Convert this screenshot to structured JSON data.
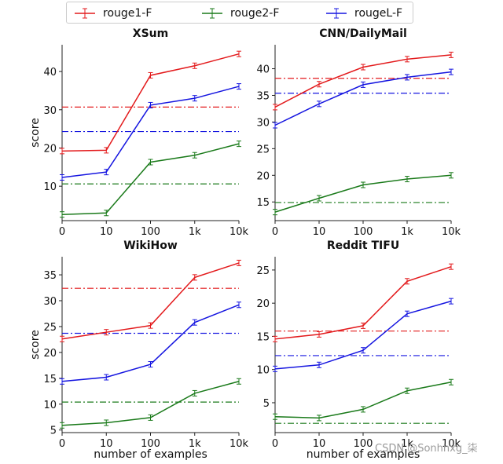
{
  "legend": {
    "items": [
      {
        "label": "rouge1-F",
        "color": "#e31a1c"
      },
      {
        "label": "rouge2-F",
        "color": "#1a7a1a"
      },
      {
        "label": "rougeL-F",
        "color": "#1515e0"
      }
    ]
  },
  "watermark": "CSDN @Sonhhxg_柒",
  "chart_data": [
    {
      "type": "line",
      "title": "XSum",
      "xlabel": "",
      "ylabel": "score",
      "categories": [
        "0",
        "10",
        "100",
        "1k",
        "10k"
      ],
      "ylim": [
        1,
        47
      ],
      "yticks": [
        10,
        20,
        30,
        40
      ],
      "series": [
        {
          "name": "rouge1-F",
          "color": "#e31a1c",
          "values": [
            19.2,
            19.4,
            39.0,
            41.5,
            44.6
          ],
          "baseline": 30.7
        },
        {
          "name": "rouge2-F",
          "color": "#1a7a1a",
          "values": [
            2.6,
            3.0,
            16.3,
            18.1,
            21.1
          ],
          "baseline": 10.6
        },
        {
          "name": "rougeL-F",
          "color": "#1515e0",
          "values": [
            12.3,
            13.7,
            31.2,
            33.0,
            36.1
          ],
          "baseline": 24.3
        }
      ]
    },
    {
      "type": "line",
      "title": "CNN/DailyMail",
      "xlabel": "",
      "ylabel": "",
      "categories": [
        "0",
        "10",
        "100",
        "1k",
        "10k"
      ],
      "ylim": [
        11.5,
        44.5
      ],
      "yticks": [
        15,
        20,
        25,
        30,
        35,
        40
      ],
      "series": [
        {
          "name": "rouge1-F",
          "color": "#e31a1c",
          "values": [
            32.8,
            37.1,
            40.3,
            41.8,
            42.6
          ],
          "baseline": 38.2
        },
        {
          "name": "rouge2-F",
          "color": "#1a7a1a",
          "values": [
            13.1,
            15.7,
            18.2,
            19.3,
            20.0
          ],
          "baseline": 14.9
        },
        {
          "name": "rougeL-F",
          "color": "#1515e0",
          "values": [
            29.4,
            33.4,
            37.0,
            38.4,
            39.4
          ],
          "baseline": 35.4
        }
      ]
    },
    {
      "type": "line",
      "title": "WikiHow",
      "xlabel": "number of examples",
      "ylabel": "score",
      "categories": [
        "0",
        "10",
        "100",
        "1k",
        "10k"
      ],
      "ylim": [
        4.5,
        38.5
      ],
      "yticks": [
        5,
        10,
        15,
        20,
        25,
        30,
        35
      ],
      "series": [
        {
          "name": "rouge1-F",
          "color": "#e31a1c",
          "values": [
            22.6,
            23.9,
            25.2,
            34.5,
            37.3
          ],
          "baseline": 32.4
        },
        {
          "name": "rouge2-F",
          "color": "#1a7a1a",
          "values": [
            5.9,
            6.4,
            7.4,
            12.1,
            14.4
          ],
          "baseline": 10.4
        },
        {
          "name": "rougeL-F",
          "color": "#1515e0",
          "values": [
            14.4,
            15.2,
            17.7,
            25.8,
            29.2
          ],
          "baseline": 23.7
        }
      ]
    },
    {
      "type": "line",
      "title": "Reddit TIFU",
      "xlabel": "number of examples",
      "ylabel": "",
      "categories": [
        "0",
        "10",
        "100",
        "1k",
        "10k"
      ],
      "ylim": [
        0.5,
        27
      ],
      "yticks": [
        5,
        10,
        15,
        20,
        25
      ],
      "series": [
        {
          "name": "rouge1-F",
          "color": "#e31a1c",
          "values": [
            14.6,
            15.3,
            16.6,
            23.3,
            25.5
          ],
          "baseline": 15.8
        },
        {
          "name": "rouge2-F",
          "color": "#1a7a1a",
          "values": [
            2.9,
            2.7,
            4.0,
            6.8,
            8.1
          ],
          "baseline": 1.9
        },
        {
          "name": "rougeL-F",
          "color": "#1515e0",
          "values": [
            10.1,
            10.7,
            12.9,
            18.4,
            20.3
          ],
          "baseline": 12.1
        }
      ]
    }
  ]
}
